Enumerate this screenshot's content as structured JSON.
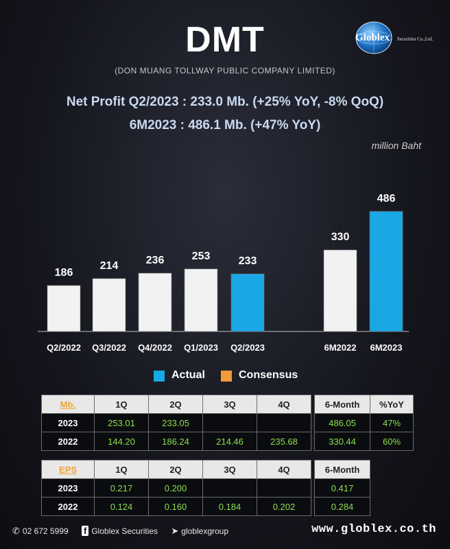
{
  "header": {
    "title": "DMT",
    "subtitle": "(DON MUANG TOLLWAY PUBLIC COMPANY LIMITED)",
    "logo_text": "Globlex",
    "logo_subtext": "Securities Co.,Ltd."
  },
  "headline": {
    "line1": "Net Profit  Q2/2023 : 233.0 Mb. (+25% YoY, -8% QoQ)",
    "line2": "6M2023 : 486.1 Mb. (+47% YoY)"
  },
  "unit_label": "million Baht",
  "chart_data": {
    "type": "bar",
    "categories": [
      "Q2/2022",
      "Q3/2022",
      "Q4/2022",
      "Q1/2023",
      "Q2/2023",
      "6M2022",
      "6M2023"
    ],
    "values": [
      186,
      214,
      236,
      253,
      233,
      330,
      486
    ],
    "highlighted": [
      "Q2/2023",
      "6M2023"
    ],
    "ylim": [
      0,
      500
    ],
    "grid": false
  },
  "legend": {
    "items": [
      {
        "label": "Actual",
        "color": "#1aa7e6"
      },
      {
        "label": "Consensus",
        "color": "#f39a3a"
      }
    ]
  },
  "colors": {
    "bar_default": "#f2f2f2",
    "bar_highlight": "#1aa7e6",
    "value_text": "#8be04e",
    "corner_text": "#f2a531"
  },
  "table_profit": {
    "corner": "Mb.",
    "headers": [
      "1Q",
      "2Q",
      "3Q",
      "4Q"
    ],
    "rows": [
      {
        "year": "2023",
        "values": [
          "253.01",
          "233.05",
          "",
          ""
        ]
      },
      {
        "year": "2022",
        "values": [
          "144.20",
          "186.24",
          "214.46",
          "235.68"
        ]
      }
    ]
  },
  "table_profit_6m": {
    "headers": [
      "6-Month",
      "%YoY"
    ],
    "rows": [
      {
        "values": [
          "486.05",
          "47%"
        ]
      },
      {
        "values": [
          "330.44",
          "60%"
        ]
      }
    ]
  },
  "table_eps": {
    "corner": "EPS",
    "headers": [
      "1Q",
      "2Q",
      "3Q",
      "4Q"
    ],
    "rows": [
      {
        "year": "2023",
        "values": [
          "0.217",
          "0.200",
          "",
          ""
        ]
      },
      {
        "year": "2022",
        "values": [
          "0.124",
          "0.160",
          "0.184",
          "0.202"
        ]
      }
    ]
  },
  "table_eps_6m": {
    "headers": [
      "6-Month"
    ],
    "rows": [
      {
        "values": [
          "0.417"
        ]
      },
      {
        "values": [
          "0.284"
        ]
      }
    ]
  },
  "footer": {
    "phone": "02 672 5999",
    "facebook": "Globlex Securities",
    "telegram": "globlexgroup",
    "website": "www.globlex.co.th"
  }
}
